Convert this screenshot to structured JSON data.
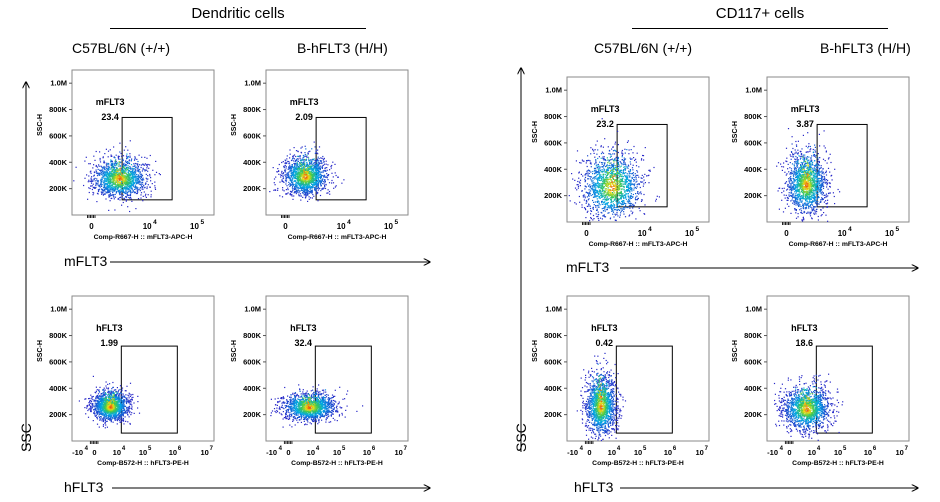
{
  "groups": [
    {
      "title": "Dendritic cells"
    },
    {
      "title": "CD117+ cells"
    }
  ],
  "column_headers": [
    {
      "label": "C57BL/6N (+/+)"
    },
    {
      "label": "B-hFLT3 (H/H)"
    },
    {
      "label": "C57BL/6N (+/+)"
    },
    {
      "label": "B-hFLT3 (H/H)"
    }
  ],
  "axis_titles": {
    "ssc": "SSC",
    "mflt3": "mFLT3",
    "hflt3": "hFLT3"
  },
  "chart_data": [
    {
      "type": "scatter",
      "panel": "dc-wt-mflt3",
      "gate_label": "mFLT3",
      "gate_value": "23.4",
      "y_ticks": [
        "1.0M",
        "800K",
        "600K",
        "400K",
        "200K"
      ],
      "y_tick_values": [
        1000000,
        800000,
        600000,
        400000,
        200000
      ],
      "x_ticks": [
        "0",
        "10",
        "4",
        "10",
        "5"
      ],
      "ylabel": "SSC-H",
      "xlabel": "Comp-R667-H :: mFLT3-APC-H",
      "ylim": [
        0,
        1100000
      ],
      "cloud_center": [
        0.5,
        270000
      ],
      "cloud_spread": [
        0.55,
        70000
      ]
    },
    {
      "type": "scatter",
      "panel": "dc-h-mflt3",
      "gate_label": "mFLT3",
      "gate_value": "2.09",
      "y_ticks": [
        "1.0M",
        "800K",
        "600K",
        "400K",
        "200K"
      ],
      "y_tick_values": [
        1000000,
        800000,
        600000,
        400000,
        200000
      ],
      "x_ticks": [
        "0",
        "10",
        "4",
        "10",
        "5"
      ],
      "ylabel": "SSC-H",
      "xlabel": "Comp-R667-H :: mFLT3-APC-H",
      "ylim": [
        0,
        1100000
      ],
      "cloud_center": [
        0.35,
        290000
      ],
      "cloud_spread": [
        0.45,
        70000
      ]
    },
    {
      "type": "scatter",
      "panel": "dc-wt-hflt3",
      "gate_label": "hFLT3",
      "gate_value": "1.99",
      "y_ticks": [
        "1.0M",
        "800K",
        "600K",
        "400K",
        "200K"
      ],
      "y_tick_values": [
        1000000,
        800000,
        600000,
        400000,
        200000
      ],
      "x_ticks": [
        "-10",
        "4",
        "0",
        "10",
        "4",
        "10",
        "5",
        "10",
        "6",
        "10",
        "7"
      ],
      "ylabel": "SSC-H",
      "xlabel": "Comp-B572-H :: hFLT3-PE-H",
      "ylim": [
        0,
        1100000
      ],
      "cloud_center": [
        0.42,
        260000
      ],
      "cloud_spread": [
        0.55,
        55000
      ]
    },
    {
      "type": "scatter",
      "panel": "dc-h-hflt3",
      "gate_label": "hFLT3",
      "gate_value": "32.4",
      "y_ticks": [
        "1.0M",
        "800K",
        "600K",
        "400K",
        "200K"
      ],
      "y_tick_values": [
        1000000,
        800000,
        600000,
        400000,
        200000
      ],
      "x_ticks": [
        "-10",
        "4",
        "0",
        "10",
        "4",
        "10",
        "5",
        "10",
        "6",
        "10",
        "7"
      ],
      "ylabel": "SSC-H",
      "xlabel": "Comp-B572-H :: hFLT3-PE-H",
      "ylim": [
        0,
        1100000
      ],
      "cloud_center": [
        0.55,
        255000
      ],
      "cloud_spread": [
        0.8,
        50000
      ]
    },
    {
      "type": "scatter",
      "panel": "cd117-wt-mflt3",
      "gate_label": "mFLT3",
      "gate_value": "23.2",
      "y_ticks": [
        "1.0M",
        "800K",
        "600K",
        "400K",
        "200K"
      ],
      "y_tick_values": [
        1000000,
        800000,
        600000,
        400000,
        200000
      ],
      "x_ticks": [
        "0",
        "10",
        "4",
        "10",
        "5"
      ],
      "ylabel": "SSC-H",
      "xlabel": "Comp-R667-H :: mFLT3-APC-H",
      "ylim": [
        0,
        1100000
      ],
      "cloud_center": [
        0.45,
        260000
      ],
      "cloud_spread": [
        0.6,
        120000
      ]
    },
    {
      "type": "scatter",
      "panel": "cd117-h-mflt3",
      "gate_label": "mFLT3",
      "gate_value": "3.87",
      "y_ticks": [
        "1.0M",
        "800K",
        "600K",
        "400K",
        "200K"
      ],
      "y_tick_values": [
        1000000,
        800000,
        600000,
        400000,
        200000
      ],
      "x_ticks": [
        "0",
        "10",
        "4",
        "10",
        "5"
      ],
      "ylabel": "SSC-H",
      "xlabel": "Comp-R667-H :: mFLT3-APC-H",
      "ylim": [
        0,
        1100000
      ],
      "cloud_center": [
        0.35,
        280000
      ],
      "cloud_spread": [
        0.4,
        110000
      ]
    },
    {
      "type": "scatter",
      "panel": "cd117-wt-hflt3",
      "gate_label": "hFLT3",
      "gate_value": "0.42",
      "y_ticks": [
        "1.0M",
        "800K",
        "600K",
        "400K",
        "200K"
      ],
      "y_tick_values": [
        1000000,
        800000,
        600000,
        400000,
        200000
      ],
      "x_ticks": [
        "-10",
        "4",
        "0",
        "10",
        "4",
        "10",
        "5",
        "10",
        "6",
        "10",
        "7"
      ],
      "ylabel": "SSC-H",
      "xlabel": "Comp-B572-H :: hFLT3-PE-H",
      "ylim": [
        0,
        1100000
      ],
      "cloud_center": [
        0.3,
        260000
      ],
      "cloud_spread": [
        0.45,
        110000
      ]
    },
    {
      "type": "scatter",
      "panel": "cd117-h-hflt3",
      "gate_label": "hFLT3",
      "gate_value": "18.6",
      "y_ticks": [
        "1.0M",
        "800K",
        "600K",
        "400K",
        "200K"
      ],
      "y_tick_values": [
        1000000,
        800000,
        600000,
        400000,
        200000
      ],
      "x_ticks": [
        "-10",
        "4",
        "0",
        "10",
        "4",
        "10",
        "5",
        "10",
        "6",
        "10",
        "7"
      ],
      "ylabel": "SSC-H",
      "xlabel": "Comp-B572-H :: hFLT3-PE-H",
      "ylim": [
        0,
        1100000
      ],
      "cloud_center": [
        0.45,
        240000
      ],
      "cloud_spread": [
        0.7,
        80000
      ]
    }
  ]
}
